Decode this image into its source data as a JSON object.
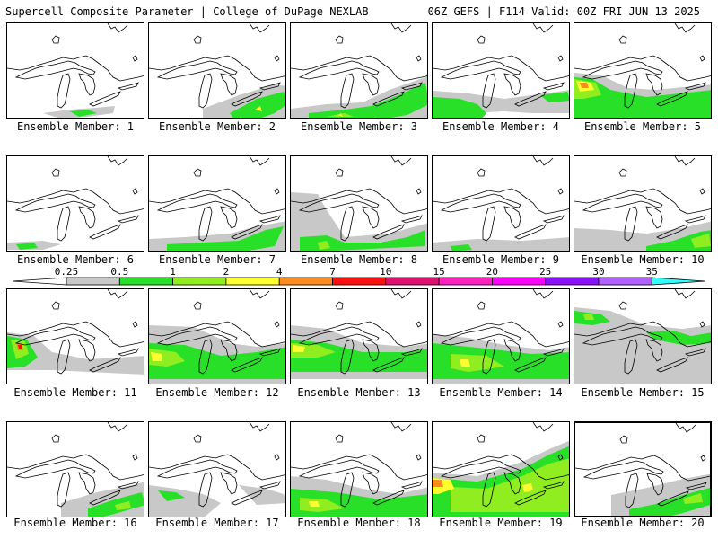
{
  "header": {
    "title_left": "Supercell Composite Parameter | College of DuPage NEXLAB",
    "title_right": "06Z GEFS | F114 Valid: 00Z FRI JUN 13 2025"
  },
  "colorbar": {
    "labels": [
      "0.25",
      "0.5",
      "1",
      "2",
      "4",
      "7",
      "10",
      "15",
      "20",
      "25",
      "30",
      "35"
    ],
    "colors": [
      "#c8c8c8",
      "#28e028",
      "#90ee20",
      "#ffff30",
      "#ff8c1e",
      "#ff1010",
      "#e0106e",
      "#ff20c0",
      "#ff00ff",
      "#8a10ff",
      "#b060ff",
      "#30ffff"
    ]
  },
  "panels": [
    {
      "caption": "Ensemble Member: 1"
    },
    {
      "caption": "Ensemble Member: 2"
    },
    {
      "caption": "Ensemble Member: 3"
    },
    {
      "caption": "Ensemble Member: 4"
    },
    {
      "caption": "Ensemble Member: 5"
    },
    {
      "caption": "Ensemble Member: 6"
    },
    {
      "caption": "Ensemble Member: 7"
    },
    {
      "caption": "Ensemble Member: 8"
    },
    {
      "caption": "Ensemble Member: 9"
    },
    {
      "caption": "Ensemble Member: 10"
    },
    {
      "caption": "Ensemble Member: 11"
    },
    {
      "caption": "Ensemble Member: 12"
    },
    {
      "caption": "Ensemble Member: 13"
    },
    {
      "caption": "Ensemble Member: 14"
    },
    {
      "caption": "Ensemble Member: 15"
    },
    {
      "caption": "Ensemble Member: 16"
    },
    {
      "caption": "Ensemble Member: 17"
    },
    {
      "caption": "Ensemble Member: 18"
    },
    {
      "caption": "Ensemble Member: 19"
    },
    {
      "caption": "Ensemble Member: 20"
    }
  ]
}
